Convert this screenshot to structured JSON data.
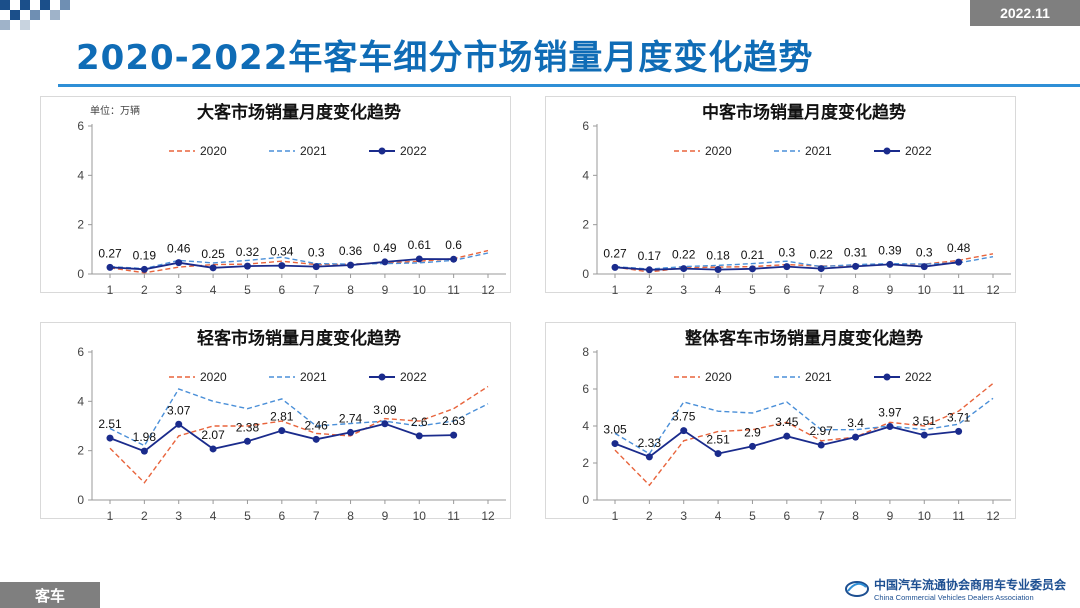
{
  "header": {
    "date": "2022.11",
    "title": "2020-2022年客车细分市场销量月度变化趋势"
  },
  "footer": {
    "tag": "客车",
    "org_cn": "中国汽车流通协会商用车专业委员会",
    "org_en": "China Commercial Vehicles Dealers Association",
    "logo_text": "CVDA"
  },
  "colors": {
    "accent": "#0f6cb6",
    "series_2020": "#e8643c",
    "series_2021": "#4a8fd8",
    "series_2022": "#1a2b8c"
  },
  "chart_data": [
    {
      "type": "line",
      "title": "大客市场销量月度变化趋势",
      "unit_label": "单位：万辆",
      "categories": [
        "1",
        "2",
        "3",
        "4",
        "5",
        "6",
        "7",
        "8",
        "9",
        "10",
        "11",
        "12"
      ],
      "ylim": [
        0,
        6
      ],
      "yticks": [
        0,
        2,
        4,
        6
      ],
      "legend_position": "top",
      "series": [
        {
          "name": "2020",
          "style": "dashed",
          "values": [
            0.25,
            0.05,
            0.28,
            0.38,
            0.4,
            0.52,
            0.38,
            0.4,
            0.45,
            0.52,
            0.62,
            0.95
          ]
        },
        {
          "name": "2021",
          "style": "dashed",
          "values": [
            0.3,
            0.22,
            0.55,
            0.45,
            0.55,
            0.68,
            0.42,
            0.4,
            0.42,
            0.45,
            0.55,
            0.85
          ]
        },
        {
          "name": "2022",
          "style": "solid-marker",
          "values": [
            0.27,
            0.19,
            0.46,
            0.25,
            0.32,
            0.34,
            0.3,
            0.36,
            0.49,
            0.61,
            0.6,
            null
          ]
        }
      ],
      "data_labels": [
        "0.27",
        "0.19",
        "0.46",
        "0.25",
        "0.32",
        "0.34",
        "0.3",
        "0.36",
        "0.49",
        "0.61",
        "0.6"
      ]
    },
    {
      "type": "line",
      "title": "中客市场销量月度变化趋势",
      "categories": [
        "1",
        "2",
        "3",
        "4",
        "5",
        "6",
        "7",
        "8",
        "9",
        "10",
        "11",
        "12"
      ],
      "ylim": [
        0,
        6
      ],
      "yticks": [
        0,
        2,
        4,
        6
      ],
      "legend_position": "top",
      "series": [
        {
          "name": "2020",
          "style": "dashed",
          "values": [
            0.28,
            0.08,
            0.25,
            0.28,
            0.3,
            0.38,
            0.32,
            0.35,
            0.38,
            0.4,
            0.55,
            0.82
          ]
        },
        {
          "name": "2021",
          "style": "dashed",
          "values": [
            0.3,
            0.2,
            0.3,
            0.35,
            0.42,
            0.52,
            0.3,
            0.38,
            0.42,
            0.4,
            0.45,
            0.7
          ]
        },
        {
          "name": "2022",
          "style": "solid-marker",
          "values": [
            0.27,
            0.17,
            0.22,
            0.18,
            0.21,
            0.3,
            0.22,
            0.31,
            0.39,
            0.3,
            0.48,
            null
          ]
        }
      ],
      "data_labels": [
        "0.27",
        "0.17",
        "0.22",
        "0.18",
        "0.21",
        "0.3",
        "0.22",
        "0.31",
        "0.39",
        "0.3",
        "0.48"
      ]
    },
    {
      "type": "line",
      "title": "轻客市场销量月度变化趋势",
      "categories": [
        "1",
        "2",
        "3",
        "4",
        "5",
        "6",
        "7",
        "8",
        "9",
        "10",
        "11",
        "12"
      ],
      "ylim": [
        0,
        6
      ],
      "yticks": [
        0,
        2,
        4,
        6
      ],
      "legend_position": "top",
      "series": [
        {
          "name": "2020",
          "style": "dashed",
          "values": [
            2.1,
            0.7,
            2.6,
            3.0,
            3.0,
            3.2,
            2.7,
            2.6,
            3.3,
            3.2,
            3.7,
            4.6
          ]
        },
        {
          "name": "2021",
          "style": "dashed",
          "values": [
            2.9,
            2.2,
            4.5,
            4.0,
            3.7,
            4.1,
            3.0,
            3.1,
            3.2,
            3.0,
            3.2,
            3.9
          ]
        },
        {
          "name": "2022",
          "style": "solid-marker",
          "values": [
            2.51,
            1.98,
            3.07,
            2.07,
            2.38,
            2.81,
            2.46,
            2.74,
            3.09,
            2.6,
            2.63,
            null
          ]
        }
      ],
      "data_labels": [
        "2.51",
        "1.98",
        "3.07",
        "2.07",
        "2.38",
        "2.81",
        "2.46",
        "2.74",
        "3.09",
        "2.6",
        "2.63"
      ]
    },
    {
      "type": "line",
      "title": "整体客车市场销量月度变化趋势",
      "categories": [
        "1",
        "2",
        "3",
        "4",
        "5",
        "6",
        "7",
        "8",
        "9",
        "10",
        "11",
        "12"
      ],
      "ylim": [
        0,
        8
      ],
      "yticks": [
        0,
        2,
        4,
        6,
        8
      ],
      "legend_position": "top",
      "series": [
        {
          "name": "2020",
          "style": "dashed",
          "values": [
            2.7,
            0.8,
            3.2,
            3.7,
            3.8,
            4.2,
            3.2,
            3.4,
            4.2,
            4.0,
            4.8,
            6.3
          ]
        },
        {
          "name": "2021",
          "style": "dashed",
          "values": [
            3.6,
            2.5,
            5.3,
            4.8,
            4.7,
            5.3,
            3.8,
            3.8,
            4.0,
            3.8,
            4.1,
            5.5
          ]
        },
        {
          "name": "2022",
          "style": "solid-marker",
          "values": [
            3.05,
            2.33,
            3.75,
            2.51,
            2.9,
            3.45,
            2.97,
            3.4,
            3.97,
            3.51,
            3.71,
            null
          ]
        }
      ],
      "data_labels": [
        "3.05",
        "2.33",
        "3.75",
        "2.51",
        "2.9",
        "3.45",
        "2.97",
        "3.4",
        "3.97",
        "3.51",
        "3.71"
      ]
    }
  ]
}
